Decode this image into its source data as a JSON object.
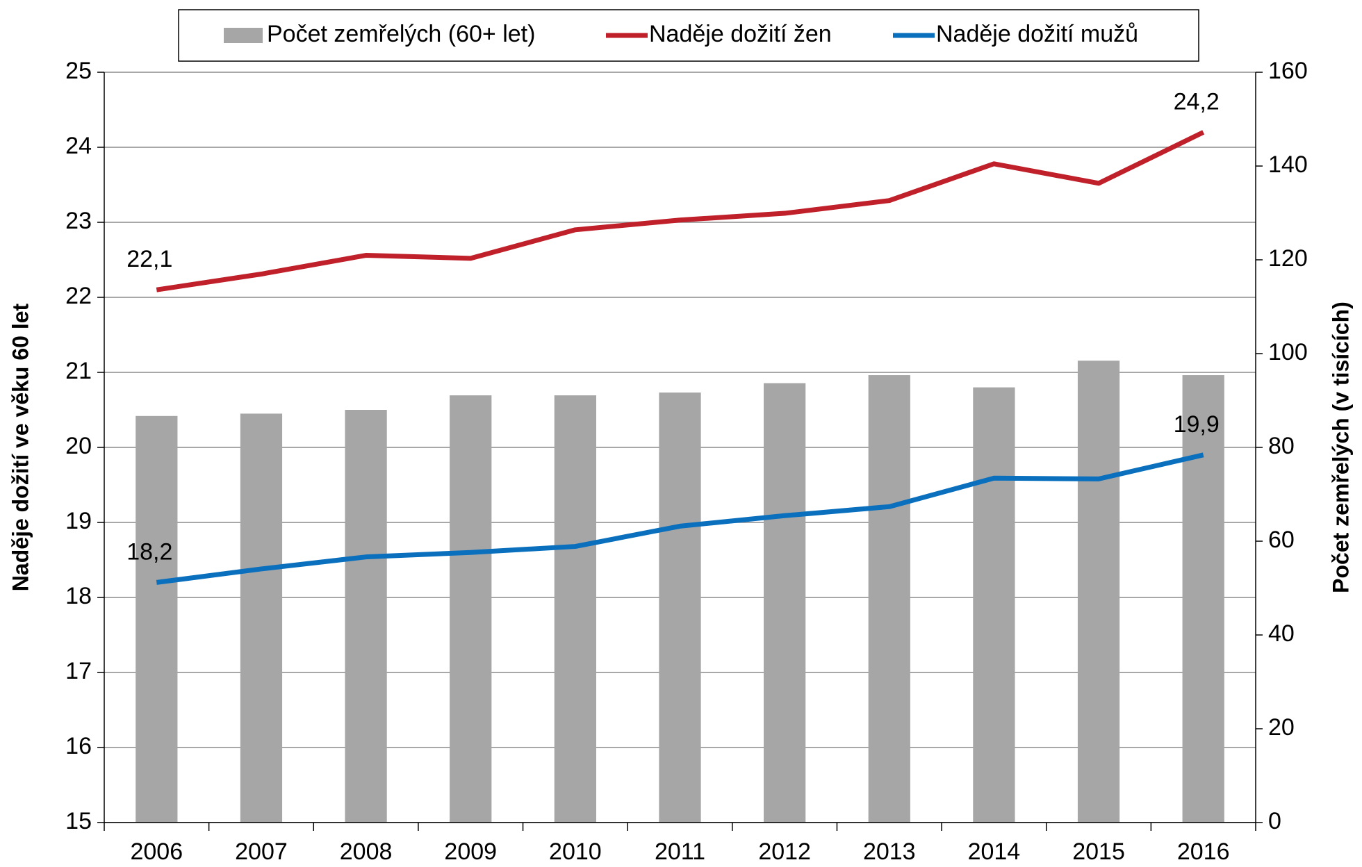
{
  "chart_data": {
    "type": "bar_line",
    "categories": [
      "2006",
      "2007",
      "2008",
      "2009",
      "2010",
      "2011",
      "2012",
      "2013",
      "2014",
      "2015",
      "2016"
    ],
    "y_axis_label": "Naděje dožití ve věku 60 let",
    "y2_axis_label": "Počet zemřelých (v tisících)",
    "ylim": [
      15,
      25
    ],
    "yticks": [
      15,
      16,
      17,
      18,
      19,
      20,
      21,
      22,
      23,
      24,
      25
    ],
    "y2lim": [
      0,
      160
    ],
    "y2ticks": [
      0,
      20,
      40,
      60,
      80,
      100,
      120,
      140,
      160
    ],
    "grid": true,
    "legend": "top",
    "series": [
      {
        "name": "Počet zemřelých (60+ let)",
        "type": "bar",
        "axis": "y2",
        "color": "#a6a6a6",
        "values": [
          86.7,
          87.2,
          88.0,
          91.1,
          91.1,
          91.7,
          93.7,
          95.4,
          92.8,
          98.5,
          95.4
        ]
      },
      {
        "name": "Naděje dožití žen",
        "type": "line",
        "color": "#c0202a",
        "values": [
          22.1,
          22.31,
          22.56,
          22.52,
          22.9,
          23.03,
          23.12,
          23.29,
          23.78,
          23.52,
          24.2
        ],
        "value_labels": [
          "22,1",
          null,
          null,
          null,
          null,
          null,
          null,
          null,
          null,
          null,
          "24,2"
        ]
      },
      {
        "name": "Naděje dožití mužů",
        "type": "line",
        "color": "#0a70be",
        "values": [
          18.2,
          18.38,
          18.54,
          18.6,
          18.68,
          18.95,
          19.09,
          19.21,
          19.59,
          19.58,
          19.9
        ],
        "value_labels": [
          "18,2",
          null,
          null,
          null,
          null,
          null,
          null,
          null,
          null,
          null,
          "19,9"
        ]
      }
    ]
  }
}
